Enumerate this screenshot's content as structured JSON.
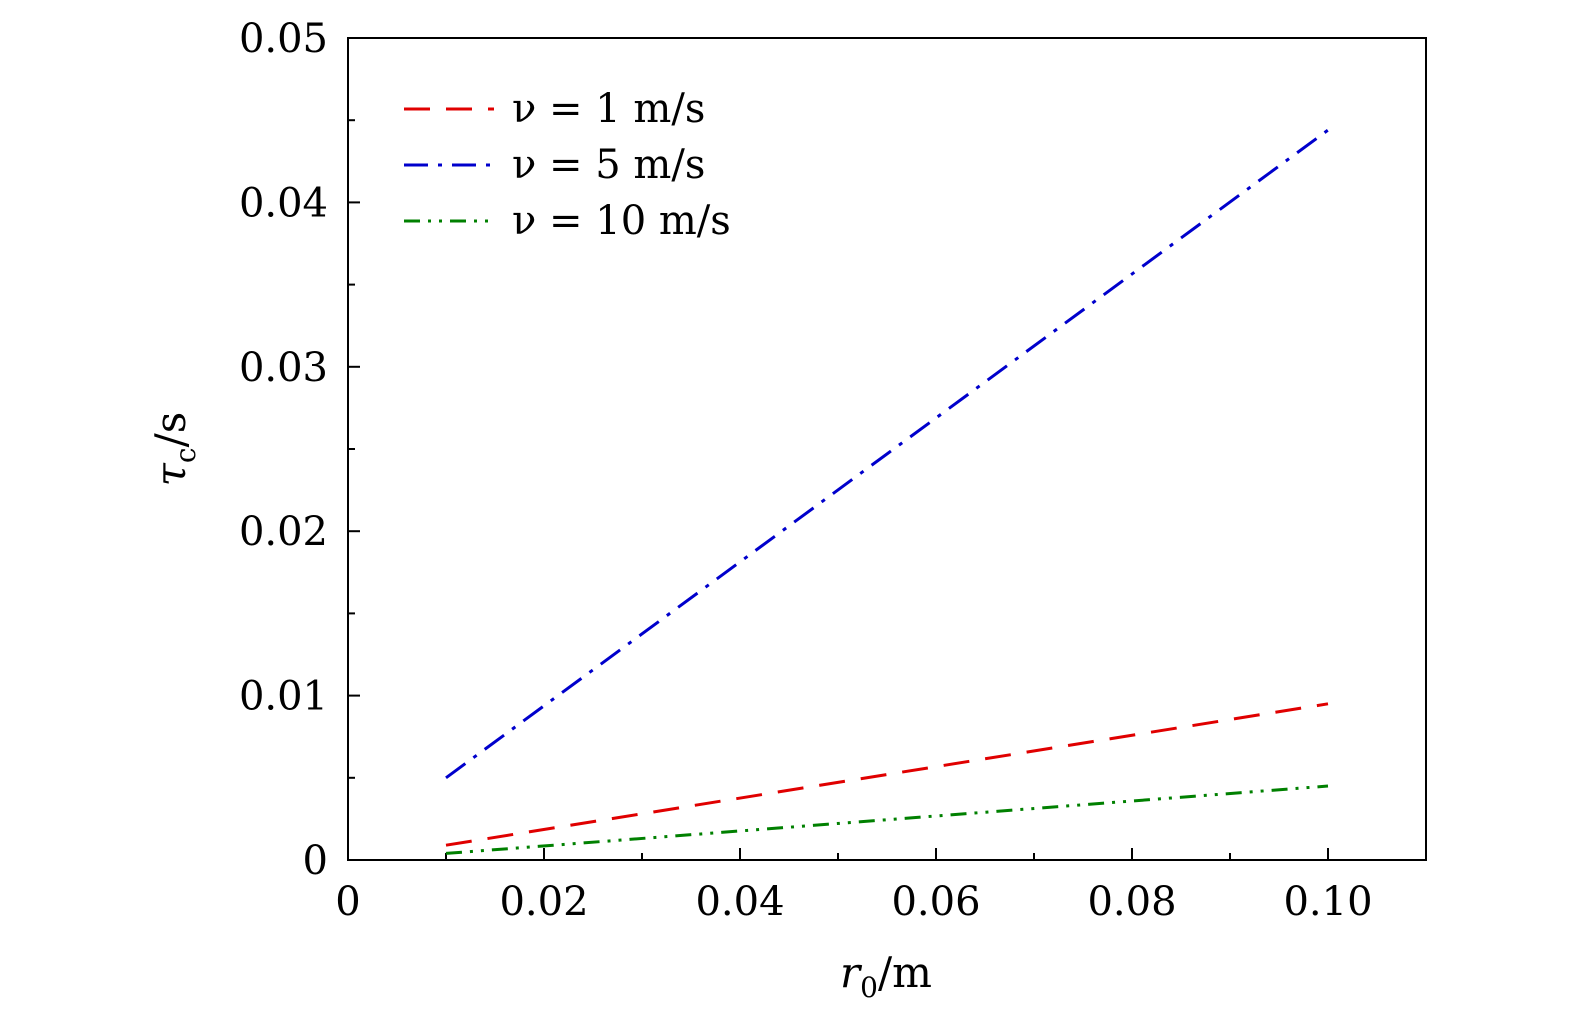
{
  "chart_data": {
    "type": "line",
    "title": "",
    "xlabel": "r0/m",
    "ylabel": "τc/s",
    "xlabel_parts": {
      "symbol": "r",
      "subscript": "0",
      "unit": "/m"
    },
    "ylabel_parts": {
      "symbol": "τ",
      "subscript": "c",
      "unit": "/s"
    },
    "xlim": [
      0,
      0.11
    ],
    "ylim": [
      0,
      0.05
    ],
    "xticks": [
      0,
      0.02,
      0.04,
      0.06,
      0.08,
      0.1
    ],
    "xtick_labels": [
      "0",
      "0.02",
      "0.04",
      "0.06",
      "0.08",
      "0.10"
    ],
    "yticks": [
      0,
      0.01,
      0.02,
      0.03,
      0.04,
      0.05
    ],
    "ytick_labels": [
      "0",
      "0.01",
      "0.02",
      "0.03",
      "0.04",
      "0.05"
    ],
    "grid": false,
    "legend_position": "top-left",
    "series": [
      {
        "name": "ν = 1 m/s",
        "color": "#e00000",
        "dash": "dashed",
        "x": [
          0.01,
          0.1
        ],
        "y": [
          0.0009,
          0.0095
        ]
      },
      {
        "name": "ν = 5 m/s",
        "color": "#0000cc",
        "dash": "dashdot",
        "x": [
          0.01,
          0.1
        ],
        "y": [
          0.005,
          0.0444
        ]
      },
      {
        "name": "ν = 10 m/s",
        "color": "#008000",
        "dash": "dashdotdot",
        "x": [
          0.01,
          0.1
        ],
        "y": [
          0.0004,
          0.0045
        ]
      }
    ]
  }
}
